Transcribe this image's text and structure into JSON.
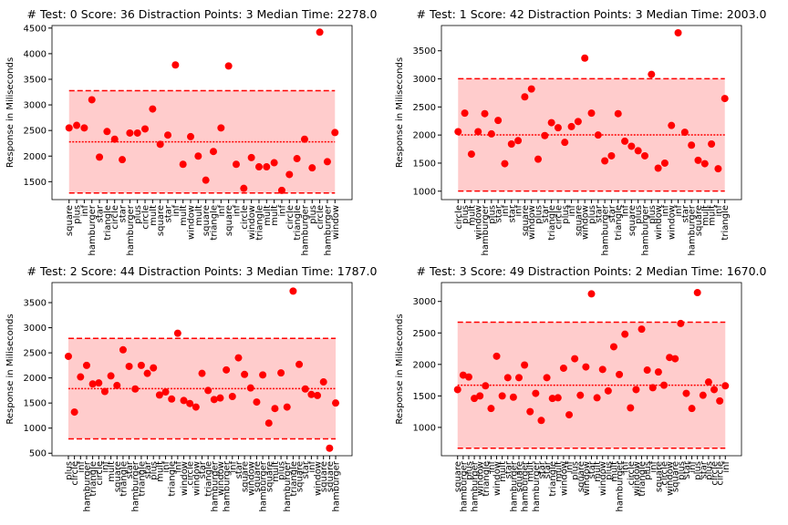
{
  "chart_data": [
    {
      "type": "scatter",
      "title": "# Test: 0 Score: 36 Distraction Points: 3 Median Time: 2278.0",
      "ylabel": "Response in Miliseconds",
      "color": "#ff0000",
      "band_color": "#ffcccc",
      "categories": [
        "square",
        "plus",
        "inf",
        "hamburger",
        "star",
        "triangle",
        "circle",
        "star",
        "hamburger",
        "plus",
        "circle",
        "mult",
        "square",
        "star",
        "inf",
        "mult",
        "window",
        "mult",
        "square",
        "triangle",
        "inf",
        "square",
        "inf",
        "circle",
        "window",
        "triangle",
        "mult",
        "mult",
        "inf",
        "circle",
        "triangle",
        "hamburger",
        "plus",
        "circle",
        "hamburger",
        "window"
      ],
      "values": [
        2550,
        2600,
        2550,
        3100,
        1980,
        2480,
        2330,
        1930,
        2450,
        2450,
        2530,
        2920,
        2230,
        2410,
        3780,
        1840,
        2380,
        2000,
        1530,
        2090,
        2550,
        3760,
        1840,
        1370,
        1970,
        1790,
        1790,
        1870,
        1330,
        1640,
        1950,
        2330,
        1770,
        4420,
        1890,
        2460
      ],
      "band": [
        1278,
        3278
      ],
      "median": 2278,
      "ylim": [
        1150,
        4550
      ],
      "yticks": [
        1500,
        2000,
        2500,
        3000,
        3500,
        4000,
        4500
      ]
    },
    {
      "type": "scatter",
      "title": "# Test: 1 Score: 42 Distraction Points: 3 Median Time: 2003.0",
      "ylabel": "Response in Miliseconds",
      "color": "#ff0000",
      "band_color": "#ffcccc",
      "categories": [
        "circle",
        "plus",
        "mult",
        "window",
        "hamburger",
        "plus",
        "star",
        "inf",
        "star",
        "inf",
        "square",
        "window",
        "plus",
        "star",
        "triangle",
        "circle",
        "plus",
        "inf",
        "square",
        "window",
        "plus",
        "star",
        "hamburger",
        "star",
        "triangle",
        "inf",
        "square",
        "plus",
        "hamburger",
        "plus",
        "window",
        "inf",
        "window",
        "inf",
        "star",
        "hamburger",
        "square",
        "mult",
        "mult",
        "inf",
        "triangle"
      ],
      "values": [
        2060,
        2390,
        1660,
        2060,
        2380,
        2020,
        2260,
        1490,
        1840,
        1900,
        2680,
        2820,
        1570,
        1990,
        2220,
        2130,
        1870,
        2150,
        2240,
        3370,
        2390,
        2000,
        1540,
        1630,
        2380,
        1890,
        1800,
        1720,
        1630,
        3080,
        1410,
        1500,
        2170,
        3820,
        2050,
        1820,
        1550,
        1490,
        1840,
        1400,
        2650
      ],
      "band": [
        1003,
        3003
      ],
      "median": 2003,
      "ylim": [
        850,
        3950
      ],
      "yticks": [
        1000,
        1500,
        2000,
        2500,
        3000,
        3500
      ]
    },
    {
      "type": "scatter",
      "title": "# Test: 2 Score: 44 Distraction Points: 3 Median Time: 1787.0",
      "ylabel": "Response in Miliseconds",
      "color": "#ff0000",
      "band_color": "#ffcccc",
      "categories": [
        "plus",
        "circle",
        "inf",
        "hamburger",
        "triangle",
        "circle",
        "inf",
        "mult",
        "square",
        "triangle",
        "star",
        "hamburger",
        "triangle",
        "star",
        "plus",
        "mult",
        "inf",
        "triangle",
        "inf",
        "window",
        "circle",
        "window",
        "star",
        "triangle",
        "hamburger",
        "window",
        "hamburger",
        "inf",
        "star",
        "square",
        "window",
        "square",
        "hamburger",
        "square",
        "mult",
        "plus",
        "hamburger",
        "triangle",
        "square",
        "star",
        "inf",
        "window",
        "square",
        "square",
        "hamburger"
      ],
      "values": [
        2430,
        1320,
        2020,
        2250,
        1880,
        1900,
        1730,
        2040,
        1850,
        2560,
        2230,
        1780,
        2250,
        2090,
        2200,
        1660,
        1720,
        1580,
        2890,
        1550,
        1490,
        1420,
        2090,
        1750,
        1570,
        1600,
        2160,
        1630,
        2400,
        2070,
        1800,
        1520,
        2060,
        1100,
        1390,
        2100,
        1420,
        3730,
        2270,
        1780,
        1670,
        1650,
        1920,
        600,
        1500
      ],
      "band": [
        787,
        2787
      ],
      "median": 1787,
      "ylim": [
        450,
        3900
      ],
      "yticks": [
        500,
        1000,
        1500,
        2000,
        2500,
        3000,
        3500
      ]
    },
    {
      "type": "scatter",
      "title": "# Test: 3 Score: 49 Distraction Points: 2 Median Time: 1670.0",
      "ylabel": "Response in Miliseconds",
      "color": "#ff0000",
      "band_color": "#ffcccc",
      "categories": [
        "square",
        "hamburger",
        "plus",
        "hamburger",
        "window",
        "triangle",
        "inf",
        "window",
        "mult",
        "star",
        "hamburger",
        "square",
        "hamburger",
        "mult",
        "hamburger",
        "star",
        "star",
        "triangle",
        "mult",
        "window",
        "inf",
        "plus",
        "square",
        "window",
        "star",
        "mult",
        "window",
        "plus",
        "mult",
        "hamburger",
        "inf",
        "circle",
        "window",
        "triangle",
        "plus",
        "inf",
        "square",
        "circle",
        "window",
        "square",
        "plus",
        "star",
        "inf",
        "plus",
        "star",
        "plus",
        "circle",
        "circle",
        "inf"
      ],
      "values": [
        1600,
        1830,
        1800,
        1460,
        1500,
        1660,
        1300,
        2130,
        1500,
        1790,
        1480,
        1790,
        1990,
        1250,
        1540,
        1110,
        1790,
        1460,
        1470,
        1940,
        1200,
        2090,
        1510,
        1960,
        3120,
        1470,
        1920,
        1580,
        2280,
        1840,
        2480,
        1310,
        1600,
        2560,
        1910,
        1630,
        1880,
        1670,
        2110,
        2090,
        2650,
        1540,
        1300,
        3140,
        1510,
        1720,
        1600,
        1420,
        1660
      ],
      "band": [
        670,
        2670
      ],
      "median": 1670,
      "ylim": [
        550,
        3300
      ],
      "yticks": [
        1000,
        1500,
        2000,
        2500,
        3000
      ]
    }
  ]
}
